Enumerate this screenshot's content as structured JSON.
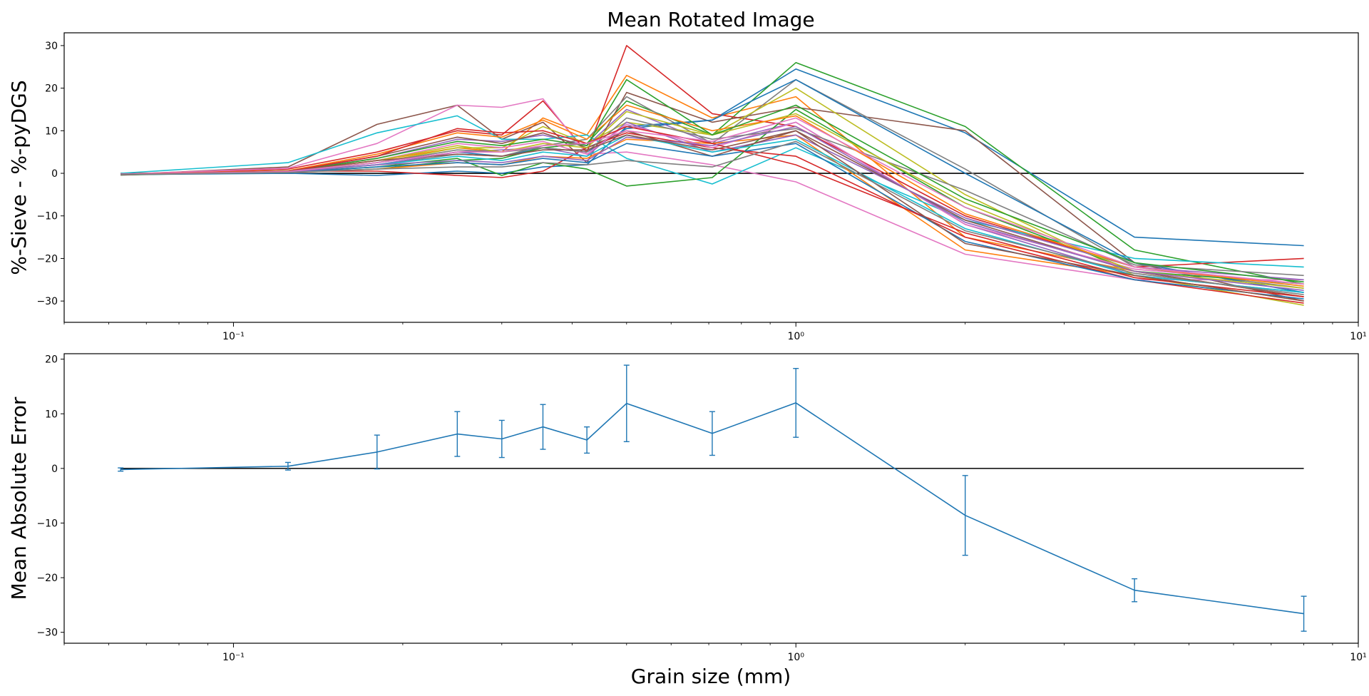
{
  "chart_data": [
    {
      "type": "line",
      "title": "Mean Rotated Image",
      "xlabel": "",
      "ylabel": "%-Sieve - %-pyDGS",
      "xscale": "log",
      "xlim": [
        0.05,
        10
      ],
      "ylim": [
        -35,
        33
      ],
      "xticks": [
        {
          "value": 0.1,
          "label": "10⁻¹"
        },
        {
          "value": 1,
          "label": "10⁰"
        },
        {
          "value": 10,
          "label": "10¹"
        }
      ],
      "yticks": [
        {
          "value": 30,
          "label": "30"
        },
        {
          "value": 20,
          "label": "20"
        },
        {
          "value": 10,
          "label": "10"
        },
        {
          "value": 0,
          "label": "0"
        },
        {
          "value": -10,
          "label": "−10"
        },
        {
          "value": -20,
          "label": "−20"
        },
        {
          "value": -30,
          "label": "−30"
        }
      ],
      "grid": false,
      "x": [
        0.063,
        0.125,
        0.18,
        0.25,
        0.3,
        0.355,
        0.425,
        0.5,
        0.71,
        1.0,
        2.0,
        4.0,
        8.0
      ],
      "zero_line": {
        "x": [
          0.063,
          8.0
        ],
        "y": [
          0,
          0
        ],
        "color": "#000000"
      },
      "series": [
        {
          "color": "#1f77b4",
          "values": [
            -0.3,
            0.5,
            2.5,
            5.0,
            4.0,
            6.0,
            5.0,
            10.5,
            12.5,
            24.5,
            9.5,
            -15.0,
            -17.0
          ]
        },
        {
          "color": "#ff7f0e",
          "values": [
            -0.2,
            0.4,
            3.0,
            6.0,
            5.0,
            13.0,
            9.0,
            23.0,
            13.0,
            18.0,
            -15.0,
            -23.0,
            -29.0
          ]
        },
        {
          "color": "#2ca02c",
          "values": [
            -0.4,
            0.3,
            1.0,
            3.0,
            3.5,
            6.0,
            7.0,
            17.0,
            9.0,
            26.0,
            11.0,
            -18.0,
            -26.0
          ]
        },
        {
          "color": "#d62728",
          "values": [
            -0.3,
            1.0,
            5.0,
            10.0,
            9.0,
            17.0,
            5.0,
            30.0,
            14.0,
            11.0,
            -10.0,
            -22.0,
            -20.0
          ]
        },
        {
          "color": "#9467bd",
          "values": [
            -0.2,
            0.6,
            3.5,
            8.0,
            7.5,
            9.0,
            6.5,
            15.0,
            7.0,
            12.0,
            -12.0,
            -24.0,
            -28.0
          ]
        },
        {
          "color": "#8c564b",
          "values": [
            -0.3,
            1.5,
            11.5,
            16.0,
            8.0,
            12.0,
            2.5,
            19.0,
            12.0,
            15.5,
            10.0,
            -21.0,
            -30.0
          ]
        },
        {
          "color": "#e377c2",
          "values": [
            -0.2,
            1.2,
            7.0,
            16.0,
            15.5,
            17.5,
            4.5,
            5.0,
            2.0,
            -2.0,
            -19.0,
            -25.0,
            -25.0
          ]
        },
        {
          "color": "#7f7f7f",
          "values": [
            -0.2,
            0.5,
            2.0,
            4.5,
            4.0,
            6.5,
            8.0,
            18.0,
            7.0,
            22.0,
            1.0,
            -22.0,
            -27.0
          ]
        },
        {
          "color": "#bcbd22",
          "values": [
            -0.2,
            0.5,
            2.5,
            6.0,
            6.0,
            11.0,
            7.0,
            12.0,
            9.0,
            20.0,
            -5.0,
            -24.0,
            -31.0
          ]
        },
        {
          "color": "#17becf",
          "values": [
            0.0,
            2.5,
            9.5,
            13.5,
            8.0,
            8.0,
            9.0,
            3.5,
            -2.5,
            6.0,
            -11.0,
            -20.0,
            -22.0
          ]
        },
        {
          "color": "#1f77b4",
          "values": [
            -0.3,
            0.0,
            -0.5,
            0.5,
            0.0,
            1.5,
            2.0,
            11.0,
            12.5,
            22.0,
            0.0,
            -21.0,
            -28.0
          ]
        },
        {
          "color": "#ff7f0e",
          "values": [
            -0.3,
            0.2,
            1.0,
            2.5,
            2.0,
            4.0,
            3.5,
            8.0,
            7.0,
            9.0,
            -18.0,
            -24.0,
            -30.0
          ]
        },
        {
          "color": "#2ca02c",
          "values": [
            -0.3,
            0.3,
            1.5,
            3.5,
            -0.5,
            2.5,
            1.0,
            -3.0,
            -1.0,
            15.0,
            -8.0,
            -23.0,
            -26.0
          ]
        },
        {
          "color": "#d62728",
          "values": [
            -0.2,
            0.5,
            0.5,
            -0.5,
            -1.0,
            0.5,
            6.0,
            9.5,
            6.0,
            4.0,
            -15.0,
            -25.0,
            -30.5
          ]
        },
        {
          "color": "#9467bd",
          "values": [
            -0.3,
            0.4,
            2.0,
            5.0,
            5.5,
            6.0,
            4.0,
            12.0,
            5.0,
            9.0,
            -10.5,
            -22.0,
            -25.0
          ]
        },
        {
          "color": "#8c564b",
          "values": [
            -0.4,
            0.6,
            4.0,
            8.5,
            7.0,
            9.5,
            6.0,
            10.0,
            4.0,
            10.0,
            -11.0,
            -23.0,
            -29.0
          ]
        },
        {
          "color": "#e377c2",
          "values": [
            -0.2,
            0.4,
            3.0,
            7.0,
            6.0,
            7.5,
            4.5,
            11.5,
            6.0,
            12.0,
            -12.0,
            -22.5,
            -26.0
          ]
        },
        {
          "color": "#7f7f7f",
          "values": [
            -0.3,
            0.3,
            2.5,
            5.5,
            5.0,
            6.0,
            5.0,
            13.0,
            8.0,
            10.5,
            -4.0,
            -21.5,
            -24.0
          ]
        },
        {
          "color": "#bcbd22",
          "values": [
            -0.3,
            0.5,
            3.0,
            6.5,
            5.0,
            7.0,
            6.0,
            14.5,
            9.0,
            14.0,
            -7.0,
            -23.0,
            -27.0
          ]
        },
        {
          "color": "#17becf",
          "values": [
            -0.2,
            0.3,
            2.0,
            4.0,
            3.0,
            5.0,
            4.0,
            9.0,
            5.0,
            8.0,
            -13.0,
            -24.0,
            -28.0
          ]
        },
        {
          "color": "#1f77b4",
          "values": [
            -0.3,
            0.2,
            1.5,
            2.5,
            2.0,
            3.5,
            2.5,
            7.0,
            4.0,
            7.0,
            -16.0,
            -25.0,
            -29.5
          ]
        },
        {
          "color": "#ff7f0e",
          "values": [
            -0.2,
            0.6,
            4.5,
            9.5,
            8.5,
            12.5,
            8.0,
            16.0,
            10.0,
            13.5,
            -9.5,
            -22.0,
            -26.5
          ]
        },
        {
          "color": "#2ca02c",
          "values": [
            -0.3,
            0.4,
            3.5,
            7.5,
            6.5,
            8.0,
            6.5,
            22.0,
            9.0,
            16.0,
            -6.0,
            -21.0,
            -25.5
          ]
        },
        {
          "color": "#d62728",
          "values": [
            -0.2,
            0.5,
            4.0,
            10.5,
            9.5,
            10.0,
            7.0,
            11.0,
            7.0,
            2.0,
            -14.0,
            -24.5,
            -29.0
          ]
        },
        {
          "color": "#9467bd",
          "values": [
            -0.3,
            0.3,
            2.0,
            3.0,
            2.5,
            4.0,
            3.0,
            8.5,
            6.5,
            11.0,
            -11.5,
            -23.0,
            -27.5
          ]
        },
        {
          "color": "#8c564b",
          "values": [
            -0.3,
            0.5,
            3.0,
            4.5,
            4.0,
            5.5,
            5.5,
            9.0,
            5.5,
            10.0,
            -16.5,
            -24.0,
            -30.0
          ]
        },
        {
          "color": "#e377c2",
          "values": [
            -0.2,
            0.4,
            2.5,
            5.0,
            5.0,
            6.5,
            7.0,
            10.0,
            7.5,
            13.0,
            -8.0,
            -22.0,
            -26.0
          ]
        },
        {
          "color": "#7f7f7f",
          "values": [
            -0.3,
            0.2,
            1.0,
            1.5,
            1.5,
            2.5,
            2.0,
            3.0,
            1.5,
            7.5,
            -13.5,
            -23.5,
            -28.5
          ]
        }
      ]
    },
    {
      "type": "line",
      "title": "",
      "xlabel": "Grain size (mm)",
      "ylabel": "Mean Absolute Error",
      "xscale": "log",
      "xlim": [
        0.05,
        10
      ],
      "ylim": [
        -32,
        21
      ],
      "xticks": [
        {
          "value": 0.1,
          "label": "10⁻¹"
        },
        {
          "value": 1,
          "label": "10⁰"
        },
        {
          "value": 10,
          "label": "10¹"
        }
      ],
      "yticks": [
        {
          "value": 20,
          "label": "20"
        },
        {
          "value": 10,
          "label": "10"
        },
        {
          "value": 0,
          "label": "0"
        },
        {
          "value": -10,
          "label": "−10"
        },
        {
          "value": -20,
          "label": "−20"
        },
        {
          "value": -30,
          "label": "−30"
        }
      ],
      "grid": false,
      "zero_line": {
        "x": [
          0.063,
          8.0
        ],
        "y": [
          0,
          0
        ],
        "color": "#000000"
      },
      "x": [
        0.063,
        0.125,
        0.18,
        0.25,
        0.3,
        0.355,
        0.425,
        0.5,
        0.71,
        1.0,
        2.0,
        4.0,
        8.0
      ],
      "series": [
        {
          "color": "#1f77b4",
          "values": [
            -0.2,
            0.4,
            3.0,
            6.3,
            5.4,
            7.6,
            5.2,
            11.9,
            6.4,
            12.0,
            -8.6,
            -22.3,
            -26.6
          ],
          "error": [
            0.3,
            0.7,
            3.1,
            4.1,
            3.4,
            4.1,
            2.4,
            7.0,
            4.0,
            6.3,
            7.3,
            2.1,
            3.2
          ]
        }
      ]
    }
  ]
}
